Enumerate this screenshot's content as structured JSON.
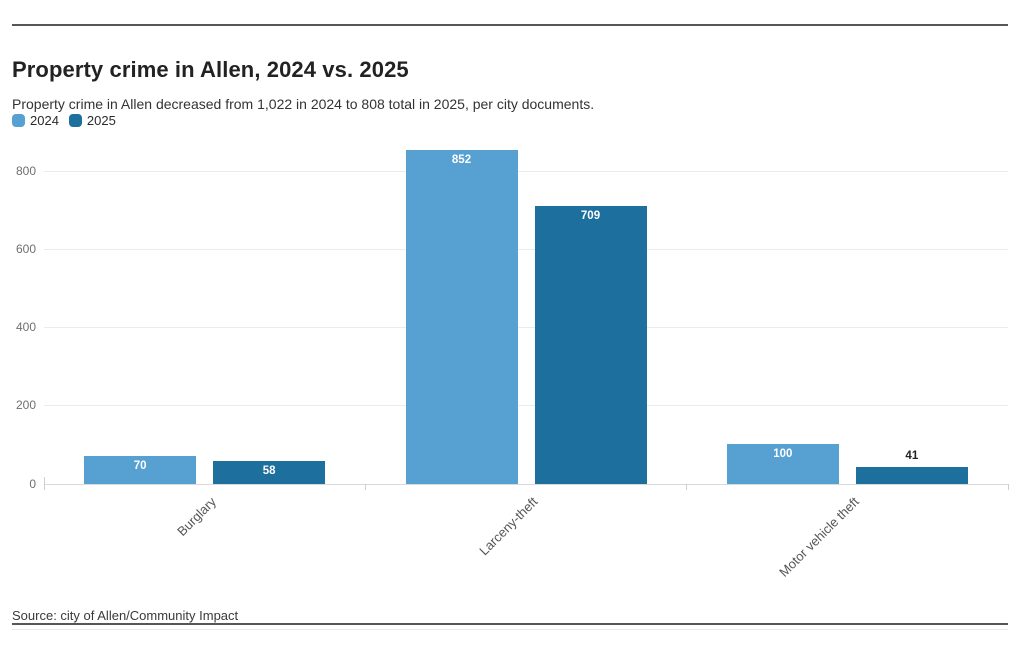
{
  "header": {
    "title": "Property crime in Allen, 2024 vs. 2025",
    "subtitle": "Property crime in Allen decreased from 1,022 in 2024 to 808 total in 2025, per city documents."
  },
  "legend": {
    "items": [
      {
        "label": "2024",
        "color": "#56a0d2"
      },
      {
        "label": "2025",
        "color": "#1d6f9e"
      }
    ]
  },
  "source": "Source: city of Allen/Community Impact",
  "chart_data": {
    "type": "bar",
    "title": "Property crime in Allen, 2024 vs. 2025",
    "categories": [
      "Burglary",
      "Larceny-theft",
      "Motor vehicle theft"
    ],
    "series": [
      {
        "name": "2024",
        "color": "#56a0d2",
        "values": [
          70,
          852,
          100
        ]
      },
      {
        "name": "2025",
        "color": "#1d6f9e",
        "values": [
          58,
          709,
          41
        ]
      }
    ],
    "xlabel": "",
    "ylabel": "",
    "ylim": [
      0,
      852
    ],
    "yticks": [
      0,
      200,
      400,
      600,
      800
    ],
    "grid": true,
    "legend_position": "top-left",
    "value_labels": true,
    "value_label_color_inside": "#ffffff",
    "value_label_color_outside": "#222222"
  }
}
